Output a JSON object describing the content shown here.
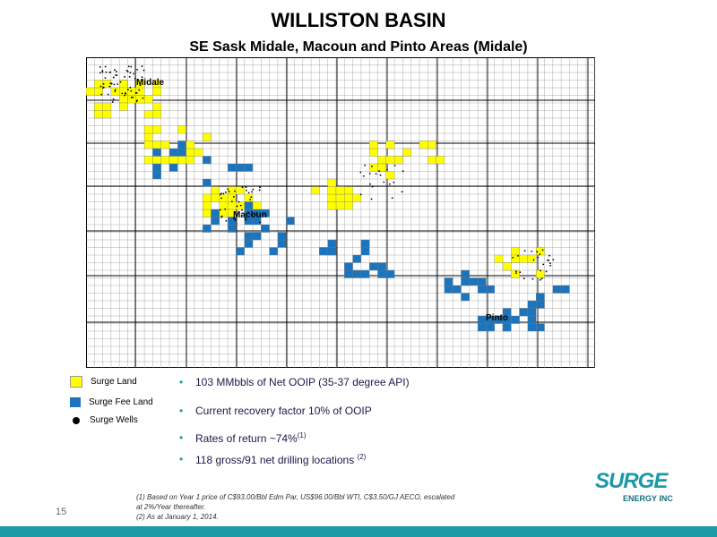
{
  "header": {
    "title": "WILLISTON BASIN",
    "subtitle": "SE Sask Midale, Macoun and Pinto Areas (Midale)"
  },
  "map": {
    "labels": [
      "Midale",
      "Macoun",
      "Pinto"
    ]
  },
  "legend": [
    "Surge Land",
    "Surge Fee Land",
    "Surge Wells"
  ],
  "bullets": [
    {
      "text": "103 MMbbls of Net OOIP (35-37 degree API)"
    },
    {
      "text": "Current recovery factor 10% of OOIP"
    },
    {
      "text": "Rates of return ~74%",
      "note": "(1)"
    },
    {
      "text": "118 gross/91 net drilling locations",
      "note": "(2)"
    }
  ],
  "footnotes": [
    "(1) Based on Year 1 price of C$93.00/Bbl Edm Par, US$96.00/Bbl WTI, C$3.50/GJ AECO, escalated at 2%/Year thereafter.",
    "(2) As at January 1, 2014."
  ],
  "page_number": "15",
  "logo": {
    "name": "SURGE",
    "tagline": "ENERGY INC"
  }
}
